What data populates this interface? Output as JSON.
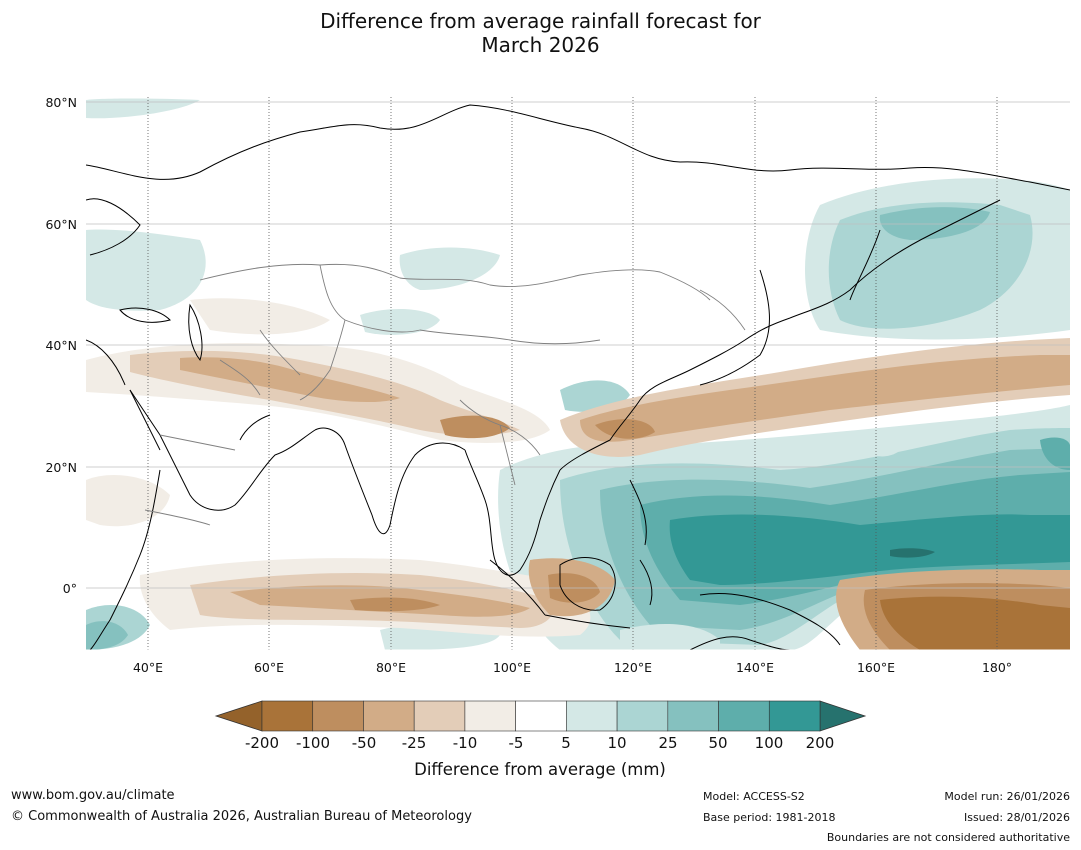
{
  "title": {
    "line1": "Difference from average rainfall forecast for",
    "line2": "March 2026"
  },
  "map": {
    "lat_labels": [
      "80°N",
      "60°N",
      "40°N",
      "20°N",
      "0°"
    ],
    "lon_labels": [
      "40°E",
      "60°E",
      "80°E",
      "100°E",
      "120°E",
      "140°E",
      "160°E",
      "180°"
    ],
    "extent": {
      "lon_min": 30,
      "lon_max": 192,
      "lat_min": -10,
      "lat_max": 80
    }
  },
  "colorbar": {
    "ticks": [
      "-200",
      "-100",
      "-50",
      "-25",
      "-10",
      "-5",
      "5",
      "10",
      "25",
      "50",
      "100",
      "200"
    ],
    "colors": [
      "#a97339",
      "#be8e5f",
      "#d2ac87",
      "#e3cdb8",
      "#f2ede6",
      "#ffffff",
      "#d4e8e6",
      "#abd5d3",
      "#85c1bf",
      "#5eaeab",
      "#339895"
    ],
    "under_color": "#94622b",
    "over_color": "#26726e",
    "title": "Difference from average (mm)"
  },
  "footer": {
    "website": "www.bom.gov.au/climate",
    "copyright": "© Commonwealth of Australia 2026, Australian Bureau of Meteorology",
    "model": "Model: ACCESS-S2",
    "base_period": "Base period: 1981-2018",
    "model_run": "Model run: 26/01/2026",
    "issued": "Issued: 28/01/2026",
    "boundaries": "Boundaries are not considered authoritative"
  }
}
